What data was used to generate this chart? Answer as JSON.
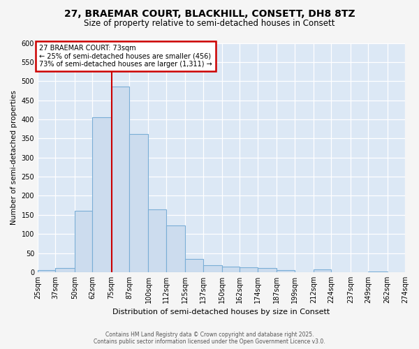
{
  "title_line1": "27, BRAEMAR COURT, BLACKHILL, CONSETT, DH8 8TZ",
  "title_line2": "Size of property relative to semi-detached houses in Consett",
  "xlabel": "Distribution of semi-detached houses by size in Consett",
  "ylabel": "Number of semi-detached properties",
  "bins": [
    25,
    37,
    50,
    62,
    75,
    87,
    100,
    112,
    125,
    137,
    150,
    162,
    174,
    187,
    199,
    212,
    224,
    237,
    249,
    262,
    274
  ],
  "bin_labels": [
    "25sqm",
    "37sqm",
    "50sqm",
    "62sqm",
    "75sqm",
    "87sqm",
    "100sqm",
    "112sqm",
    "125sqm",
    "137sqm",
    "150sqm",
    "162sqm",
    "174sqm",
    "187sqm",
    "199sqm",
    "212sqm",
    "224sqm",
    "237sqm",
    "249sqm",
    "262sqm",
    "274sqm"
  ],
  "counts": [
    5,
    10,
    160,
    405,
    485,
    362,
    165,
    122,
    35,
    18,
    15,
    12,
    10,
    5,
    0,
    8,
    0,
    0,
    2,
    0
  ],
  "bar_facecolor": "#ccdcee",
  "bar_edgecolor": "#7aaed6",
  "vline_x": 75,
  "vline_color": "#cc0000",
  "annotation_title": "27 BRAEMAR COURT: 73sqm",
  "annotation_line2": "← 25% of semi-detached houses are smaller (456)",
  "annotation_line3": "73% of semi-detached houses are larger (1,311) →",
  "annotation_box_edgecolor": "#cc0000",
  "ylim": [
    0,
    600
  ],
  "yticks": [
    0,
    50,
    100,
    150,
    200,
    250,
    300,
    350,
    400,
    450,
    500,
    550,
    600
  ],
  "fig_bg": "#f5f5f5",
  "plot_bg": "#dce8f5",
  "grid_color": "#ffffff",
  "footer_line1": "Contains HM Land Registry data © Crown copyright and database right 2025.",
  "footer_line2": "Contains public sector information licensed under the Open Government Licence v3.0."
}
